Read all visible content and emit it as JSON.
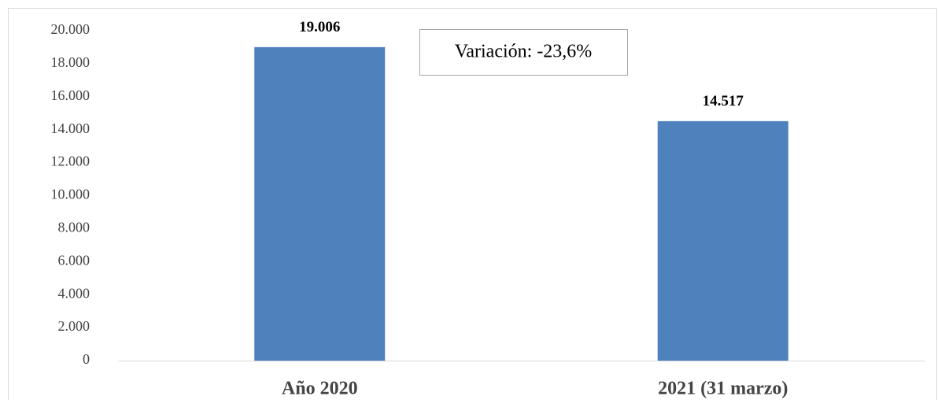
{
  "chart_data": {
    "type": "bar",
    "categories": [
      "Año 2020",
      "2021 (31 marzo)"
    ],
    "values": [
      19006,
      14517
    ],
    "value_labels": [
      "19.006",
      "14.517"
    ],
    "color": "#4f81bd",
    "ylim": [
      0,
      20000
    ],
    "yticks": [
      0,
      {
        "value": 2000,
        "label": "2.000"
      },
      {
        "value": 4000,
        "label": "4.000"
      },
      {
        "value": 6000,
        "label": "6.000"
      },
      {
        "value": 8000,
        "label": "8.000"
      },
      {
        "value": 10000,
        "label": "10.000"
      },
      {
        "value": 12000,
        "label": "12.000"
      },
      {
        "value": 14000,
        "label": "14.000"
      },
      {
        "value": 16000,
        "label": "16.000"
      },
      {
        "value": 18000,
        "label": "18.000"
      },
      {
        "value": 20000,
        "label": "20.000"
      }
    ],
    "annotation": "Variación: -23,6%",
    "grid": false
  }
}
